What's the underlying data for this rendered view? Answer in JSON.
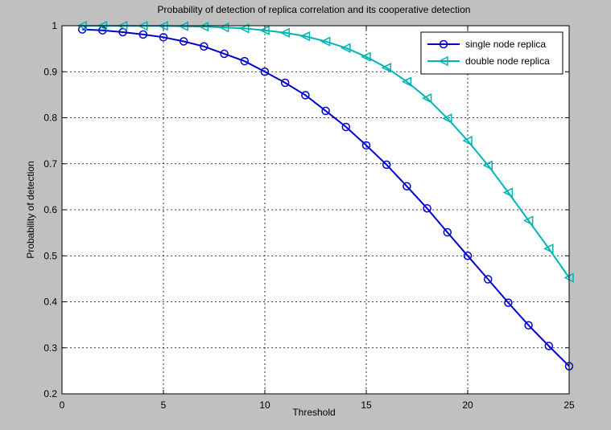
{
  "chart_data": {
    "type": "line",
    "title": "Probability of detection of replica correlation and its cooperative detection",
    "xlabel": "Threshold",
    "ylabel": "Probability of detection",
    "xlim": [
      0,
      25
    ],
    "ylim": [
      0.2,
      1
    ],
    "xticks": [
      "0",
      "5",
      "10",
      "15",
      "20",
      "25"
    ],
    "yticks": [
      "0.2",
      "0.3",
      "0.4",
      "0.5",
      "0.6",
      "0.7",
      "0.8",
      "0.9",
      "1"
    ],
    "grid": true,
    "legend_position": "top-right",
    "x": [
      1,
      2,
      3,
      4,
      5,
      6,
      7,
      8,
      9,
      10,
      11,
      12,
      13,
      14,
      15,
      16,
      17,
      18,
      19,
      20,
      21,
      22,
      23,
      24,
      25
    ],
    "series": [
      {
        "name": "single node replica",
        "color": "#0000cc",
        "marker": "circle",
        "values": [
          0.992,
          0.99,
          0.986,
          0.981,
          0.975,
          0.966,
          0.955,
          0.939,
          0.923,
          0.9,
          0.876,
          0.849,
          0.815,
          0.78,
          0.74,
          0.698,
          0.651,
          0.603,
          0.551,
          0.5,
          0.449,
          0.398,
          0.349,
          0.304,
          0.26
        ]
      },
      {
        "name": "double node replica",
        "color": "#00b4b4",
        "marker": "triangle-left",
        "values": [
          0.9999,
          0.9999,
          0.9998,
          0.9996,
          0.9994,
          0.9988,
          0.998,
          0.9963,
          0.9941,
          0.99,
          0.9847,
          0.9772,
          0.9658,
          0.9516,
          0.9324,
          0.9088,
          0.8785,
          0.8424,
          0.7986,
          0.75,
          0.6966,
          0.6376,
          0.5764,
          0.5156,
          0.4524
        ]
      }
    ]
  }
}
